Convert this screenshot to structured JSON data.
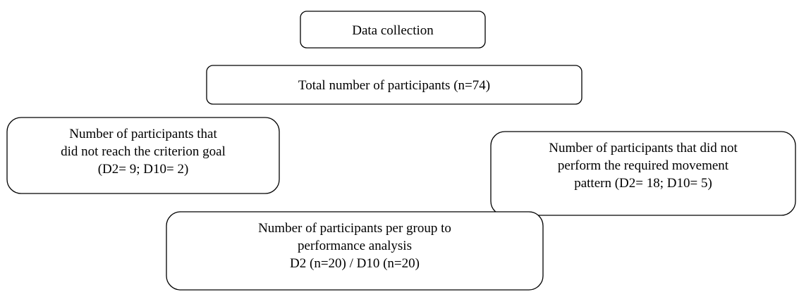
{
  "nodes": [
    {
      "lines": [
        "Data collection"
      ]
    },
    {
      "lines": [
        "Total number of participants (n=74)"
      ]
    },
    {
      "lines": [
        "Number of participants that",
        "did not reach the criterion goal",
        "(D2= 9; D10= 2)"
      ]
    },
    {
      "lines": [
        "Number of participants that did not",
        "perform the required movement",
        "pattern (D2= 18; D10= 5)"
      ]
    },
    {
      "lines": [
        "Number of participants per group to",
        "performance analysis",
        "D2 (n=20) / D10 (n=20)"
      ]
    }
  ]
}
